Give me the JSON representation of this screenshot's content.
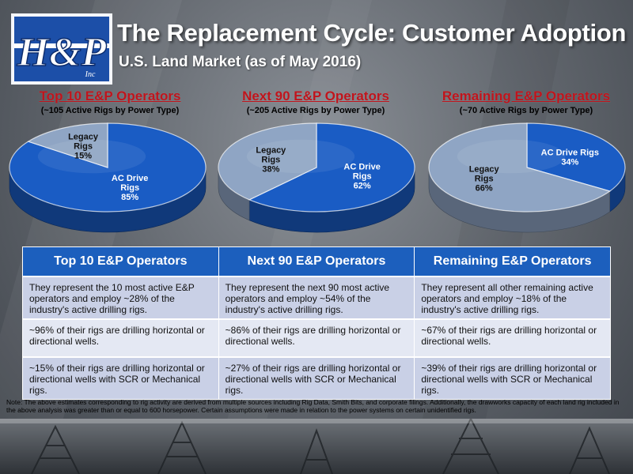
{
  "logo": {
    "main": "H&P",
    "sub": "Inc"
  },
  "title": "The Replacement Cycle: Customer Adoption",
  "subtitle": "U.S. Land Market (as of May 2016)",
  "colors": {
    "ac_drive": "#1a5cc4",
    "legacy": "#8fa5c4",
    "header_blue": "#1c5fbd",
    "title_red": "#c0141c"
  },
  "chart_data": [
    {
      "type": "pie",
      "title": "Top 10 E&P Operators",
      "subtitle": "(~105 Active Rigs by Power Type)",
      "slices": [
        {
          "label": "AC Drive Rigs",
          "label_lines": [
            "AC Drive",
            "Rigs",
            "85%"
          ],
          "value": 85
        },
        {
          "label": "Legacy Rigs",
          "label_lines": [
            "Legacy",
            "Rigs",
            "15%"
          ],
          "value": 15
        }
      ]
    },
    {
      "type": "pie",
      "title": "Next 90 E&P Operators",
      "subtitle": "(~205 Active Rigs by Power Type)",
      "slices": [
        {
          "label": "AC Drive Rigs",
          "label_lines": [
            "AC Drive",
            "Rigs",
            "62%"
          ],
          "value": 62
        },
        {
          "label": "Legacy Rigs",
          "label_lines": [
            "Legacy",
            "Rigs",
            "38%"
          ],
          "value": 38
        }
      ]
    },
    {
      "type": "pie",
      "title": "Remaining E&P Operators",
      "subtitle": "(~70 Active Rigs by Power Type)",
      "slices": [
        {
          "label": "AC Drive Rigs",
          "label_lines": [
            "AC Drive Rigs",
            "34%"
          ],
          "value": 34
        },
        {
          "label": "Legacy Rigs",
          "label_lines": [
            "Legacy",
            "Rigs",
            "66%"
          ],
          "value": 66
        }
      ]
    }
  ],
  "table": {
    "headers": [
      "Top 10 E&P Operators",
      "Next 90 E&P Operators",
      "Remaining E&P Operators"
    ],
    "rows": [
      [
        "They represent the 10 most active E&P operators and employ ~28% of the industry's active drilling rigs.",
        "They represent the next 90 most active operators and employ ~54% of the industry's active drilling rigs.",
        "They represent all other remaining active operators and employ ~18% of the industry's active drilling rigs."
      ],
      [
        "~96% of their rigs are drilling horizontal or directional wells.",
        "~86% of their rigs are drilling horizontal or directional wells.",
        "~67% of their rigs are drilling horizontal or directional wells."
      ],
      [
        "~15% of their rigs are drilling horizontal or directional wells with SCR or Mechanical rigs.",
        "~27% of their rigs are drilling horizontal or directional wells with SCR or Mechanical rigs.",
        "~39% of their rigs are drilling horizontal or directional wells with SCR or Mechanical rigs."
      ]
    ]
  },
  "note": "Note: The above estimates corresponding to rig activity are derived from multiple sources including Rig Data, Smith Bits, and corporate filings. Additionally, the drawworks capacity of each land rig included in the above analysis was greater than or equal to 600 horsepower. Certain assumptions were made in relation to the power systems on certain unidentified rigs."
}
